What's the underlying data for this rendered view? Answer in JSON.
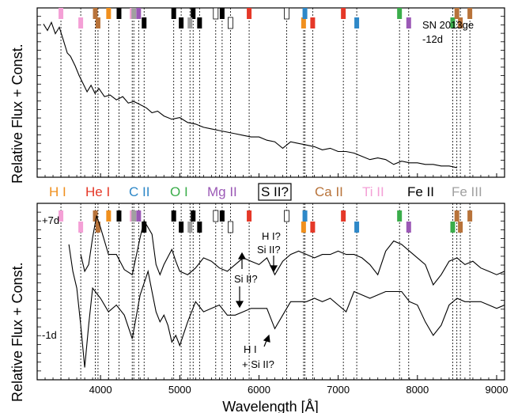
{
  "chart_data": [
    {
      "type": "line",
      "panel": "top",
      "ylabel": "Relative Flux + Const.",
      "annotation": [
        "SN 2013ge",
        "-12d"
      ],
      "xlim": [
        3200,
        9100
      ],
      "ylim": [
        0,
        1
      ],
      "grid": "vertical dotted lines at line positions",
      "series": [
        {
          "epoch": "-12d",
          "x": [
            3280,
            3330,
            3380,
            3430,
            3480,
            3530,
            3580,
            3620,
            3680,
            3730,
            3780,
            3830,
            3880,
            3930,
            3980,
            4050,
            4120,
            4200,
            4280,
            4350,
            4420,
            4500,
            4580,
            4650,
            4720,
            4800,
            4900,
            5000,
            5100,
            5200,
            5300,
            5400,
            5500,
            5600,
            5700,
            5800,
            5900,
            6000,
            6100,
            6200,
            6300,
            6400,
            6500,
            6600,
            6700,
            6800,
            6900,
            7000,
            7100,
            7200,
            7300,
            7400,
            7500,
            7600,
            7700,
            7800,
            7900,
            8000,
            8100,
            8200,
            8300,
            8400,
            8500
          ],
          "y": [
            0.92,
            0.88,
            0.93,
            0.86,
            0.9,
            0.82,
            0.74,
            0.72,
            0.66,
            0.6,
            0.55,
            0.5,
            0.54,
            0.49,
            0.52,
            0.47,
            0.48,
            0.45,
            0.47,
            0.43,
            0.44,
            0.42,
            0.4,
            0.37,
            0.38,
            0.35,
            0.33,
            0.34,
            0.31,
            0.3,
            0.28,
            0.27,
            0.26,
            0.25,
            0.24,
            0.23,
            0.22,
            0.22,
            0.2,
            0.19,
            0.15,
            0.19,
            0.18,
            0.17,
            0.16,
            0.14,
            0.15,
            0.13,
            0.13,
            0.12,
            0.1,
            0.08,
            0.09,
            0.08,
            0.05,
            0.07,
            0.06,
            0.06,
            0.05,
            0.05,
            0.04,
            0.04,
            0.03
          ]
        }
      ],
      "line_marks": {
        "H I": [
          4102,
          6563
        ],
        "He I": [
          5876,
          6678,
          7065
        ],
        "C II": [
          6580,
          7234
        ],
        "O I": [
          7774,
          8446
        ],
        "Mg II": [
          4481,
          7890
        ],
        "S II?": [
          5454,
          5640,
          6350
        ],
        "Ca II": [
          3934,
          3968,
          8498,
          8542,
          8662
        ],
        "Ti II": [
          3500,
          3750,
          4400
        ],
        "Fe II": [
          4233,
          4550,
          4924,
          5018,
          5169,
          5250,
          5535
        ],
        "Fe III": [
          4420,
          5129
        ]
      },
      "xticks": [
        4000,
        5000,
        6000,
        7000,
        8000,
        9000
      ]
    },
    {
      "type": "line",
      "panel": "bottom",
      "xlabel": "Wavelength [Å]",
      "ylabel": "Relative Flux + Const.",
      "xlim": [
        3200,
        9100
      ],
      "ylim": [
        0,
        1
      ],
      "xticks": [
        4000,
        5000,
        6000,
        7000,
        8000,
        9000
      ],
      "series": [
        {
          "epoch": "+7d",
          "x": [
            3750,
            3800,
            3850,
            3900,
            3950,
            4000,
            4100,
            4200,
            4300,
            4400,
            4500,
            4550,
            4650,
            4700,
            4750,
            4800,
            4900,
            4950,
            5000,
            5100,
            5200,
            5300,
            5400,
            5500,
            5600,
            5700,
            5800,
            5900,
            6000,
            6100,
            6200,
            6300,
            6400,
            6500,
            6600,
            6700,
            6800,
            6900,
            7000,
            7100,
            7200,
            7300,
            7400,
            7500,
            7600,
            7700,
            7800,
            7900,
            8000,
            8100,
            8200,
            8300,
            8400,
            8500,
            8600,
            8700,
            8800,
            8900,
            9000,
            9100
          ],
          "y": [
            0.72,
            0.62,
            0.66,
            0.82,
            0.95,
            0.88,
            0.72,
            0.72,
            0.63,
            0.6,
            0.82,
            0.92,
            0.84,
            0.66,
            0.6,
            0.66,
            0.75,
            0.68,
            0.62,
            0.6,
            0.64,
            0.7,
            0.68,
            0.64,
            0.62,
            0.66,
            0.7,
            0.68,
            0.66,
            0.7,
            0.6,
            0.68,
            0.72,
            0.74,
            0.72,
            0.7,
            0.72,
            0.72,
            0.74,
            0.72,
            0.72,
            0.7,
            0.66,
            0.6,
            0.74,
            0.8,
            0.78,
            0.74,
            0.7,
            0.66,
            0.54,
            0.6,
            0.68,
            0.7,
            0.66,
            0.68,
            0.64,
            0.62,
            0.6,
            0.62
          ]
        },
        {
          "epoch": "-1d",
          "x": [
            3600,
            3650,
            3700,
            3750,
            3800,
            3850,
            3900,
            4000,
            4100,
            4200,
            4300,
            4400,
            4500,
            4600,
            4650,
            4700,
            4750,
            4800,
            4850,
            4900,
            4950,
            5000,
            5100,
            5200,
            5300,
            5400,
            5500,
            5600,
            5700,
            5800,
            5900,
            6000,
            6100,
            6200,
            6300,
            6400,
            6500,
            6600,
            6700,
            6800,
            6900,
            7000,
            7100,
            7200,
            7300,
            7400,
            7500,
            7600,
            7700,
            7800,
            7900,
            8000,
            8100,
            8200,
            8300,
            8400,
            8500,
            8600,
            8700,
            8800,
            8900,
            9000,
            9100
          ],
          "y": [
            0.78,
            0.62,
            0.52,
            0.3,
            0.05,
            0.3,
            0.52,
            0.46,
            0.38,
            0.42,
            0.36,
            0.22,
            0.48,
            0.62,
            0.5,
            0.38,
            0.32,
            0.36,
            0.3,
            0.2,
            0.24,
            0.18,
            0.32,
            0.44,
            0.38,
            0.4,
            0.42,
            0.36,
            0.36,
            0.38,
            0.4,
            0.4,
            0.4,
            0.28,
            0.36,
            0.44,
            0.44,
            0.44,
            0.46,
            0.44,
            0.46,
            0.42,
            0.38,
            0.5,
            0.48,
            0.46,
            0.48,
            0.5,
            0.5,
            0.5,
            0.44,
            0.42,
            0.32,
            0.24,
            0.3,
            0.42,
            0.46,
            0.44,
            0.44,
            0.44,
            0.42,
            0.4,
            0.42
          ]
        }
      ],
      "labels": [
        "+7d",
        "-1d"
      ],
      "annotations": [
        {
          "text": "H I?",
          "x": 6250
        },
        {
          "text": "Si II?",
          "x": 6250
        },
        {
          "text": "Si II?",
          "x": 5800
        },
        {
          "text": "H I",
          "x": 6150
        },
        {
          "text": "+ Si II?",
          "x": 6150
        }
      ]
    }
  ],
  "legend": {
    "items": [
      {
        "label": "H I",
        "color": "#f0901e"
      },
      {
        "label": "He I",
        "color": "#e53828"
      },
      {
        "label": "C II",
        "color": "#2e88c8"
      },
      {
        "label": "O I",
        "color": "#3aad4a"
      },
      {
        "label": "Mg II",
        "color": "#9b59b6"
      },
      {
        "label": "S II?",
        "color": "#000000",
        "boxed": true
      },
      {
        "label": "Ca II",
        "color": "#b8733a"
      },
      {
        "label": "Ti II",
        "color": "#f4a0d6"
      },
      {
        "label": "Fe II",
        "color": "#000000"
      },
      {
        "label": "Fe III",
        "color": "#a0a0a0"
      }
    ]
  }
}
